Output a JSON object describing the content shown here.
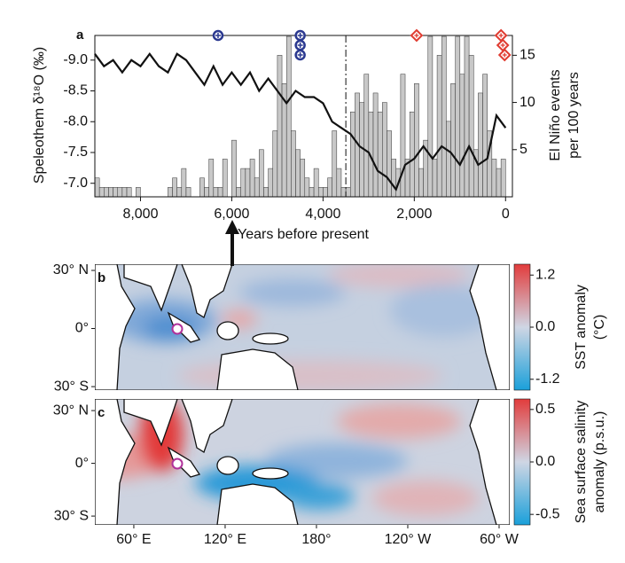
{
  "chart_data": [
    {
      "type": "bar",
      "panel": "a",
      "xlabel": "Years before present",
      "ylabel": "Speleothem δ¹⁸O (‰)",
      "y2label": [
        "El Niño events",
        "per 100 years"
      ],
      "xlim": [
        9000,
        -150
      ],
      "xticks": [
        {
          "value": 8000,
          "label": "8,000"
        },
        {
          "value": 6000,
          "label": "6,000"
        },
        {
          "value": 4000,
          "label": "4,000"
        },
        {
          "value": 2000,
          "label": "2,000"
        },
        0
      ],
      "ylim": [
        -6.78,
        -9.4
      ],
      "yticks": [
        {
          "value": -9,
          "label": "-9.0"
        },
        -8.5,
        {
          "value": -8,
          "label": "-8.0"
        },
        -7.5,
        {
          "value": -7,
          "label": "-7.0"
        }
      ],
      "y2lim": [
        0,
        17.1
      ],
      "y2ticks": [
        5,
        10,
        15
      ],
      "bins": [
        9000,
        8900,
        8800,
        8700,
        8600,
        8500,
        8400,
        8300,
        8200,
        8100,
        8000,
        7900,
        7800,
        7700,
        7600,
        7500,
        7400,
        7300,
        7200,
        7100,
        7000,
        6900,
        6800,
        6700,
        6600,
        6500,
        6400,
        6300,
        6200,
        6100,
        6000,
        5900,
        5800,
        5700,
        5600,
        5500,
        5400,
        5300,
        5200,
        5100,
        5000,
        4900,
        4800,
        4700,
        4600,
        4500,
        4400,
        4300,
        4200,
        4100,
        4000,
        3900,
        3800,
        3700,
        3600,
        3500,
        3400,
        3300,
        3200,
        3100,
        3000,
        2900,
        2800,
        2700,
        2600,
        2500,
        2400,
        2300,
        2200,
        2100,
        2000,
        1900,
        1800,
        1700,
        1600,
        1500,
        1400,
        1300,
        1200,
        1100,
        1000,
        900,
        800,
        700,
        600,
        500,
        400,
        300,
        200,
        100,
        0
      ],
      "counts": [
        2,
        1,
        1,
        1,
        1,
        1,
        1,
        1,
        0,
        1,
        0,
        0,
        0,
        0,
        0,
        0,
        1,
        2,
        1,
        3,
        1,
        0,
        0,
        2,
        1,
        4,
        1,
        1,
        4,
        0,
        6,
        1,
        3,
        3,
        4,
        2,
        5,
        1,
        3,
        7,
        15,
        12,
        17,
        7,
        5,
        4,
        2,
        1,
        3,
        1,
        1,
        2,
        7,
        3,
        1,
        1,
        9,
        11,
        10,
        13,
        9,
        11,
        9,
        10,
        7,
        4,
        3,
        13,
        4,
        9,
        12,
        3,
        6,
        17,
        4,
        15,
        17,
        8,
        12,
        17,
        13,
        17,
        15,
        5,
        11,
        13,
        7,
        4,
        3,
        4
      ],
      "bar_color": "#c8c8c8",
      "line": {
        "color": "#111111",
        "x": [
          9000,
          8800,
          8600,
          8400,
          8200,
          8000,
          7800,
          7600,
          7400,
          7200,
          7000,
          6800,
          6600,
          6400,
          6200,
          6000,
          5800,
          5600,
          5400,
          5200,
          5000,
          4800,
          4600,
          4400,
          4200,
          4000,
          3800,
          3600,
          3400,
          3200,
          3000,
          2800,
          2600,
          2400,
          2200,
          2000,
          1800,
          1600,
          1400,
          1200,
          1000,
          800,
          600,
          400,
          200,
          0
        ],
        "values": [
          -9.1,
          -8.9,
          -9.0,
          -8.8,
          -9.0,
          -8.9,
          -9.1,
          -8.9,
          -8.8,
          -9.1,
          -9.0,
          -8.8,
          -8.6,
          -8.9,
          -8.6,
          -8.8,
          -8.6,
          -8.8,
          -8.5,
          -8.7,
          -8.5,
          -8.3,
          -8.5,
          -8.4,
          -8.4,
          -8.3,
          -8.0,
          -7.9,
          -7.8,
          -7.6,
          -7.5,
          -7.2,
          -7.1,
          -6.9,
          -7.3,
          -7.4,
          -7.6,
          -7.4,
          -7.6,
          -7.5,
          -7.3,
          -7.6,
          -7.3,
          -7.4,
          -8.1,
          -7.9
        ]
      },
      "dashed_line_x": 3500,
      "circle_markers": {
        "color": "#2b3990",
        "x": [
          6300,
          4500,
          4500,
          4500
        ]
      },
      "diamond_markers": {
        "color": "#e03c31",
        "x": [
          1950,
          100,
          60,
          20
        ]
      }
    },
    {
      "type": "map",
      "panel": "b",
      "latlim": [
        -31.8,
        33.2
      ],
      "latticks": [
        {
          "value": 30,
          "label": "30° N"
        },
        {
          "value": 0,
          "label": "0°"
        },
        {
          "value": -30,
          "label": "30° S"
        }
      ],
      "colorbar": {
        "lim": [
          -1.45,
          1.45
        ],
        "ticks": [
          1.2,
          {
            "value": 0,
            "label": "0.0"
          },
          -1.2
        ],
        "label": [
          "SST anomaly",
          "(°C)"
        ],
        "colors": [
          "#1aa0da",
          "#cfd6e4",
          "#e23c3c"
        ]
      }
    },
    {
      "type": "map",
      "panel": "c",
      "latlim": [
        -35,
        36.6
      ],
      "latticks": [
        {
          "value": 30,
          "label": "30° N"
        },
        {
          "value": 0,
          "label": "0°"
        },
        {
          "value": -30,
          "label": "30° S"
        }
      ],
      "lonlim": [
        34.4,
        307
      ],
      "lonticks": [
        {
          "value": 60,
          "label": "60° E"
        },
        {
          "value": 120,
          "label": "120° E"
        },
        {
          "value": 180,
          "label": "180°"
        },
        {
          "value": 240,
          "label": "120° W"
        },
        {
          "value": 300,
          "label": "60° W"
        }
      ],
      "colorbar": {
        "lim": [
          -0.6,
          0.6
        ],
        "ticks": [
          0.5,
          {
            "value": 0,
            "label": "0.0"
          },
          -0.5
        ],
        "label": [
          "Sea surface salinity",
          "anomaly (p.s.u.)"
        ],
        "colors": [
          "#1aa0da",
          "#cfd6e4",
          "#e23c3c"
        ]
      }
    }
  ]
}
